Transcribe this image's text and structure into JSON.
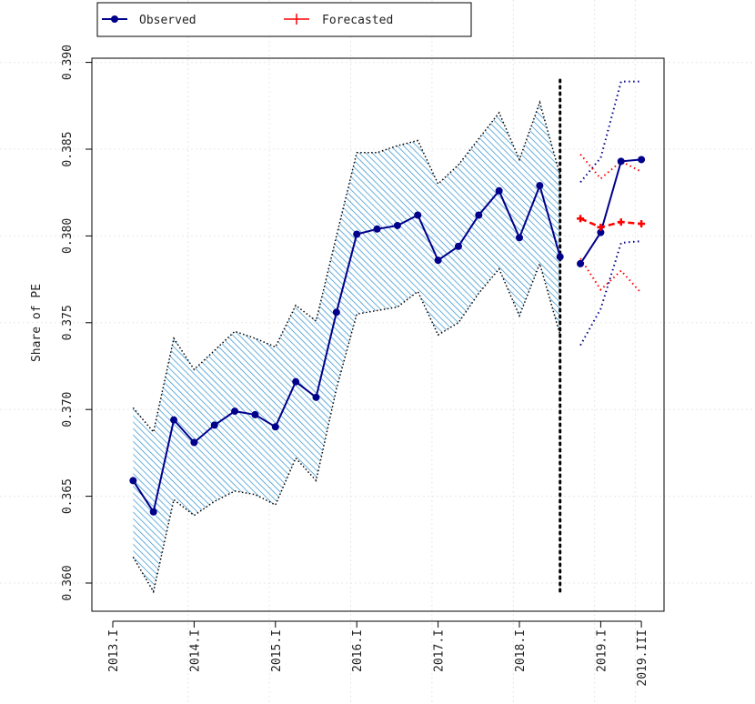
{
  "chart_data": {
    "type": "line",
    "ylabel": "Share of PE",
    "xlabel": "",
    "ylim": [
      0.3585,
      0.3905
    ],
    "y_ticks": [
      0.36,
      0.365,
      0.37,
      0.375,
      0.38,
      0.385,
      0.39
    ],
    "y_tick_labels": [
      "0.360",
      "0.365",
      "0.370",
      "0.375",
      "0.380",
      "0.385",
      "0.390"
    ],
    "x_ticks": [
      {
        "t": 0,
        "label": "2013.I"
      },
      {
        "t": 4,
        "label": "2014.I"
      },
      {
        "t": 8,
        "label": "2015.I"
      },
      {
        "t": 12,
        "label": "2016.I"
      },
      {
        "t": 16,
        "label": "2017.I"
      },
      {
        "t": 20,
        "label": "2018.I"
      },
      {
        "t": 24,
        "label": "2019.I"
      },
      {
        "t": 26,
        "label": "2019.III"
      }
    ],
    "xlim": [
      -0.5,
      27
    ],
    "forecast_start": 22,
    "legend": {
      "position": "top-left",
      "entries": [
        {
          "name": "Observed",
          "color": "#00008B",
          "marker": "circle"
        },
        {
          "name": "Forecasted",
          "color": "#FF0000",
          "marker": "plus"
        }
      ]
    },
    "observed_insample": {
      "t": [
        1,
        2,
        3,
        4,
        5,
        6,
        7,
        8,
        9,
        10,
        11,
        12,
        13,
        14,
        15,
        16,
        17,
        18,
        19,
        20,
        21,
        22
      ],
      "values": [
        0.3659,
        0.3641,
        0.3694,
        0.3681,
        0.3691,
        0.3699,
        0.3697,
        0.369,
        0.3716,
        0.3707,
        0.3756,
        0.3801,
        0.3804,
        0.3806,
        0.3812,
        0.3786,
        0.3794,
        0.3812,
        0.3826,
        0.3799,
        0.3829,
        0.3788
      ],
      "band_upper": [
        0.3701,
        0.3687,
        0.3741,
        0.3723,
        0.3734,
        0.3745,
        0.3741,
        0.3736,
        0.376,
        0.3751,
        0.38,
        0.3848,
        0.3848,
        0.3852,
        0.3855,
        0.383,
        0.3841,
        0.3856,
        0.3871,
        0.3844,
        0.3877,
        0.3835
      ],
      "band_lower": [
        0.3615,
        0.3595,
        0.3648,
        0.3639,
        0.3647,
        0.3653,
        0.3651,
        0.3645,
        0.3672,
        0.3659,
        0.3712,
        0.3755,
        0.3757,
        0.3759,
        0.3768,
        0.3743,
        0.375,
        0.3767,
        0.3781,
        0.3754,
        0.3784,
        0.3743
      ]
    },
    "observed_outsample": {
      "t": [
        23,
        24,
        25,
        26
      ],
      "values": [
        0.3784,
        0.3802,
        0.3843,
        0.3844
      ],
      "upper": [
        0.3831,
        0.3845,
        0.3889,
        0.3889
      ],
      "lower": [
        0.3737,
        0.3758,
        0.3796,
        0.3797
      ]
    },
    "forecast": {
      "t": [
        23,
        24,
        25,
        26
      ],
      "values": [
        0.381,
        0.3805,
        0.3808,
        0.3807
      ],
      "upper": [
        0.3847,
        0.3833,
        0.3843,
        0.3837
      ],
      "lower": [
        0.3787,
        0.3769,
        0.378,
        0.3767
      ]
    },
    "colors": {
      "observed": "#00008B",
      "forecast": "#FF0000",
      "band_fill": "#1E90FF",
      "grid": "#E8E8E8",
      "divider": "#000000"
    }
  }
}
